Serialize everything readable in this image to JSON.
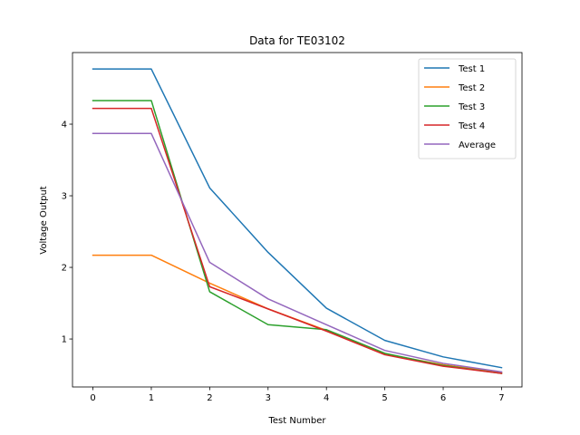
{
  "chart_data": {
    "type": "line",
    "title": "Data for TE03102",
    "xlabel": "Test Number",
    "ylabel": "Voltage Output",
    "x": [
      0,
      1,
      2,
      3,
      4,
      5,
      6,
      7
    ],
    "xlim": [
      -0.35,
      7.35
    ],
    "ylim": [
      0.33,
      5.0
    ],
    "xticks": [
      0,
      1,
      2,
      3,
      4,
      5,
      6,
      7
    ],
    "yticks": [
      1,
      2,
      3,
      4
    ],
    "legend_position": "top-right",
    "grid": false,
    "series": [
      {
        "name": "Test 1",
        "color": "#1f77b4",
        "values": [
          4.77,
          4.77,
          3.11,
          2.21,
          1.43,
          0.98,
          0.75,
          0.6
        ]
      },
      {
        "name": "Test 2",
        "color": "#ff7f0e",
        "values": [
          2.17,
          2.17,
          1.78,
          1.42,
          1.12,
          0.79,
          0.64,
          0.53
        ]
      },
      {
        "name": "Test 3",
        "color": "#2ca02c",
        "values": [
          4.33,
          4.33,
          1.66,
          1.2,
          1.13,
          0.8,
          0.63,
          0.52
        ]
      },
      {
        "name": "Test 4",
        "color": "#d62728",
        "values": [
          4.22,
          4.22,
          1.73,
          1.42,
          1.11,
          0.78,
          0.62,
          0.52
        ]
      },
      {
        "name": "Average",
        "color": "#9467bd",
        "values": [
          3.87,
          3.87,
          2.07,
          1.56,
          1.2,
          0.84,
          0.66,
          0.54
        ]
      }
    ]
  }
}
